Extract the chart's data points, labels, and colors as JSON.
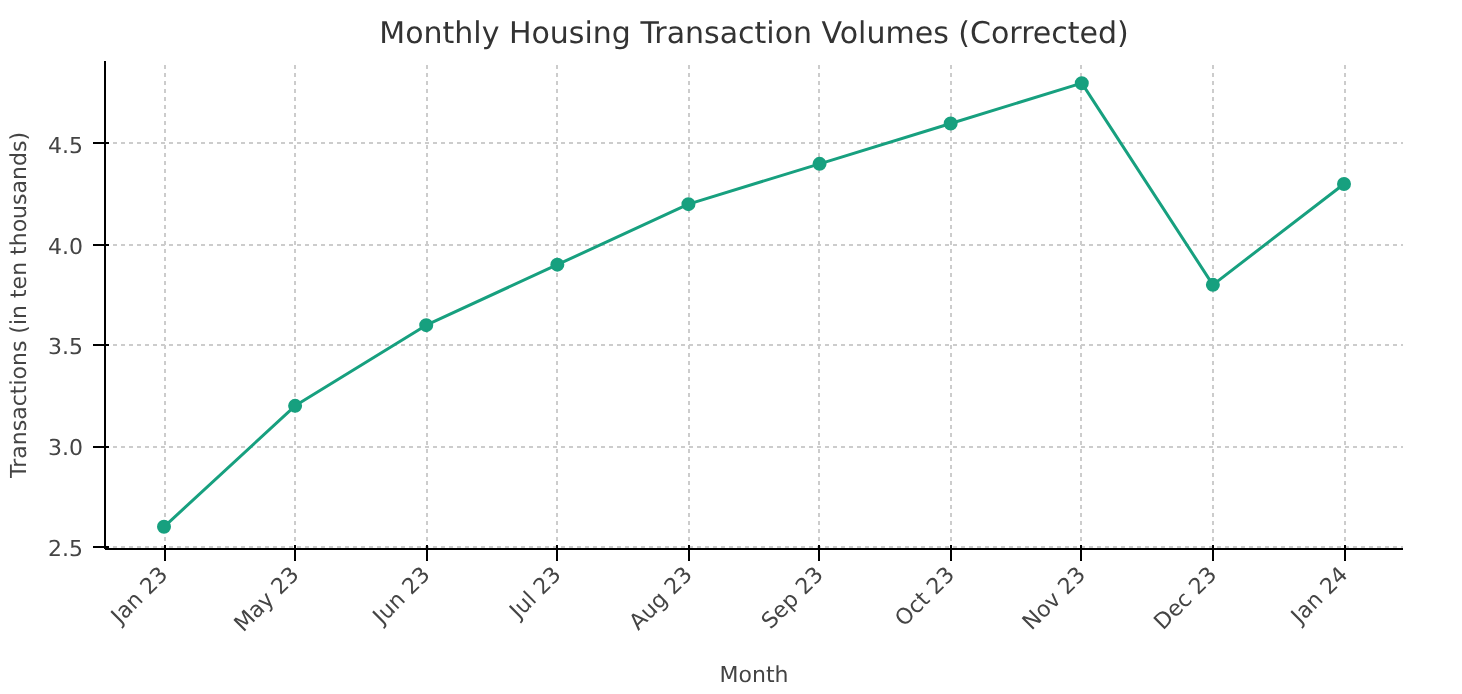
{
  "chart_data": {
    "type": "line",
    "title": "Monthly Housing Transaction Volumes (Corrected)",
    "xlabel": "Month",
    "ylabel": "Transactions (in ten thousands)",
    "categories": [
      "Jan 23",
      "May 23",
      "Jun 23",
      "Jul 23",
      "Aug 23",
      "Sep 23",
      "Oct 23",
      "Nov 23",
      "Dec 23",
      "Jan 24"
    ],
    "series": [
      {
        "color": "#17a07f",
        "values": [
          2.6,
          3.2,
          3.6,
          3.9,
          4.2,
          4.4,
          4.6,
          4.8,
          3.8,
          4.3
        ]
      }
    ],
    "ylim": [
      2.49,
      4.91
    ],
    "yticks": [
      {
        "value": 2.5,
        "label": "2.5"
      },
      {
        "value": 3,
        "label": "3.0"
      },
      {
        "value": 3.5,
        "label": "3.5"
      },
      {
        "value": 4,
        "label": "4.0"
      },
      {
        "value": 4.5,
        "label": "4.5"
      }
    ],
    "grid": true,
    "marker": "circle",
    "line_style": "solid"
  }
}
